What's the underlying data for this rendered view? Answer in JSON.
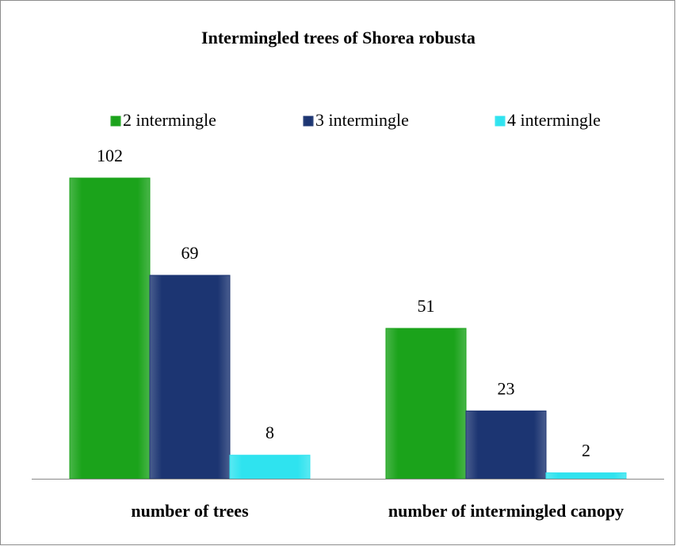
{
  "chart_data": {
    "type": "bar",
    "title": "Intermingled trees of Shorea robusta",
    "categories": [
      "number of trees",
      "number of intermingled canopy"
    ],
    "series": [
      {
        "name": "2 intermingle",
        "color": "#1ba31b",
        "values": [
          102,
          51
        ]
      },
      {
        "name": "3 intermingle",
        "color": "#1c3572",
        "values": [
          69,
          23
        ]
      },
      {
        "name": "4 intermingle",
        "color": "#2fe3ef",
        "values": [
          8,
          2
        ]
      }
    ],
    "legend": "top"
  }
}
